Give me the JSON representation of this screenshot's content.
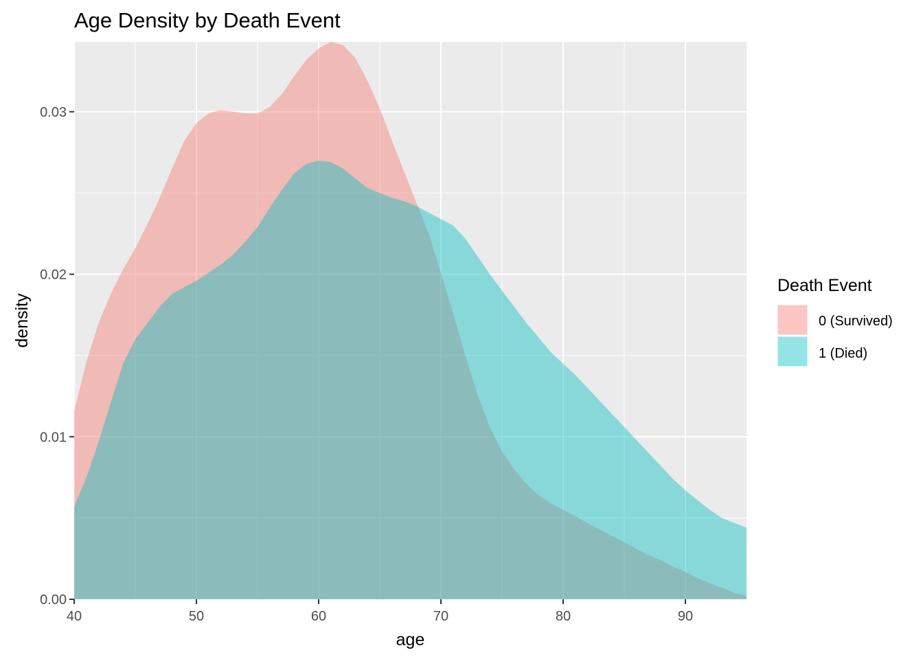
{
  "chart_data": {
    "type": "area",
    "title": "Age Density by Death Event",
    "xlabel": "age",
    "ylabel": "density",
    "xlim": [
      40,
      95
    ],
    "ylim": [
      0,
      0.0343
    ],
    "x_ticks": [
      40,
      50,
      60,
      70,
      80,
      90
    ],
    "x_tick_labels": [
      "40",
      "50",
      "60",
      "70",
      "80",
      "90"
    ],
    "y_ticks": [
      0,
      0.01,
      0.02,
      0.03
    ],
    "y_tick_labels": [
      "0.00",
      "0.01",
      "0.02",
      "0.03"
    ],
    "grid": true,
    "legend": {
      "title": "Death Event",
      "position": "right"
    },
    "series": [
      {
        "name": "0 (Survived)",
        "color": "#F8766D",
        "x": [
          40,
          41,
          42,
          43,
          44,
          45,
          46,
          47,
          48,
          49,
          50,
          51,
          52,
          53,
          54,
          55,
          56,
          57,
          58,
          59,
          60,
          61,
          62,
          63,
          64,
          65,
          66,
          67,
          68,
          69,
          70,
          71,
          72,
          73,
          74,
          75,
          76,
          77,
          78,
          79,
          80,
          81,
          82,
          83,
          84,
          85,
          86,
          87,
          88,
          89,
          90,
          91,
          92,
          93,
          94,
          95
        ],
        "values": [
          0.0116,
          0.0146,
          0.017,
          0.0188,
          0.0203,
          0.0216,
          0.0231,
          0.0247,
          0.0265,
          0.0282,
          0.0293,
          0.0299,
          0.0301,
          0.03,
          0.0299,
          0.0299,
          0.0303,
          0.0311,
          0.0322,
          0.0332,
          0.0339,
          0.0343,
          0.0341,
          0.0333,
          0.0319,
          0.0302,
          0.0282,
          0.0263,
          0.0244,
          0.0225,
          0.0201,
          0.0176,
          0.015,
          0.0126,
          0.0106,
          0.0091,
          0.008,
          0.0071,
          0.0064,
          0.0059,
          0.0055,
          0.0051,
          0.0047,
          0.0043,
          0.0039,
          0.0035,
          0.0031,
          0.0027,
          0.0024,
          0.002,
          0.0017,
          0.0013,
          0.001,
          0.0007,
          0.0004,
          0.0002
        ]
      },
      {
        "name": "1 (Died)",
        "color": "#00BFC4",
        "x": [
          40,
          41,
          42,
          43,
          44,
          45,
          46,
          47,
          48,
          49,
          50,
          51,
          52,
          53,
          54,
          55,
          56,
          57,
          58,
          59,
          60,
          61,
          62,
          63,
          64,
          65,
          66,
          67,
          68,
          69,
          70,
          71,
          72,
          73,
          74,
          75,
          76,
          77,
          78,
          79,
          80,
          81,
          82,
          83,
          84,
          85,
          86,
          87,
          88,
          89,
          90,
          91,
          92,
          93,
          94,
          95
        ],
        "values": [
          0.0057,
          0.0075,
          0.0097,
          0.0121,
          0.0145,
          0.016,
          0.017,
          0.018,
          0.0188,
          0.0192,
          0.0196,
          0.0201,
          0.0206,
          0.0212,
          0.022,
          0.0229,
          0.0241,
          0.0252,
          0.0262,
          0.0268,
          0.027,
          0.0269,
          0.0265,
          0.0259,
          0.0253,
          0.025,
          0.0247,
          0.0245,
          0.0242,
          0.0238,
          0.0234,
          0.023,
          0.0222,
          0.0211,
          0.02,
          0.019,
          0.018,
          0.017,
          0.0161,
          0.0152,
          0.0145,
          0.0138,
          0.013,
          0.0122,
          0.0114,
          0.0106,
          0.0098,
          0.009,
          0.0082,
          0.0074,
          0.0067,
          0.0061,
          0.0055,
          0.005,
          0.0047,
          0.0044
        ]
      }
    ]
  }
}
